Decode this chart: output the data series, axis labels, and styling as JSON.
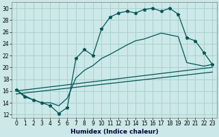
{
  "xlabel": "Humidex (Indice chaleur)",
  "bg_color": "#cce8e8",
  "grid_color": "#aad0d0",
  "line_color": "#005555",
  "xlim": [
    -0.5,
    23.5
  ],
  "ylim": [
    11.5,
    31.0
  ],
  "xticks": [
    0,
    1,
    2,
    3,
    4,
    5,
    6,
    7,
    8,
    9,
    10,
    11,
    12,
    13,
    14,
    15,
    16,
    17,
    18,
    19,
    20,
    21,
    22,
    23
  ],
  "yticks": [
    12,
    14,
    16,
    18,
    20,
    22,
    24,
    26,
    28,
    30
  ],
  "zigzag_x": [
    0,
    1,
    2,
    3,
    4,
    5,
    6,
    7,
    8,
    9,
    10,
    11,
    12,
    13,
    14,
    15,
    16,
    17,
    18,
    19,
    20,
    21,
    22,
    23
  ],
  "zigzag_y": [
    16.2,
    15.0,
    14.5,
    14.0,
    13.5,
    12.2,
    13.2,
    21.5,
    23.0,
    22.0,
    26.5,
    28.5,
    29.2,
    29.5,
    29.2,
    29.8,
    30.0,
    29.5,
    30.0,
    29.0,
    25.0,
    24.5,
    22.5,
    20.5
  ],
  "line1_x": [
    0,
    23
  ],
  "line1_y": [
    16.0,
    20.0
  ],
  "line2_x": [
    0,
    23
  ],
  "line2_y": [
    15.5,
    19.2
  ],
  "line3_x": [
    0,
    1,
    2,
    3,
    4,
    5,
    6,
    7,
    8,
    9,
    10,
    11,
    12,
    13,
    14,
    15,
    16,
    17,
    18,
    19,
    20,
    21,
    22,
    23
  ],
  "line3_y": [
    16.2,
    15.2,
    14.5,
    14.0,
    14.0,
    13.5,
    14.8,
    18.2,
    19.5,
    20.3,
    21.5,
    22.2,
    23.0,
    23.8,
    24.5,
    24.8,
    25.3,
    25.8,
    25.5,
    25.2,
    20.8,
    20.5,
    20.2,
    20.5
  ]
}
